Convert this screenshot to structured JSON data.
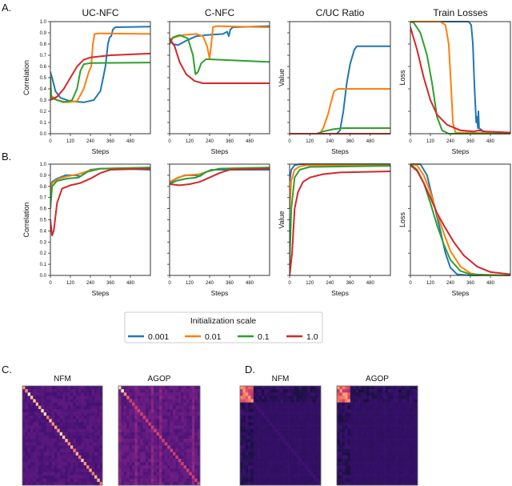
{
  "colors": {
    "0.001": "#1f77b4",
    "0.01": "#ff7f0e",
    "0.1": "#2ca02c",
    "1.0": "#d62728"
  },
  "panel_labels": {
    "A": "A.",
    "B": "B.",
    "C": "C.",
    "D": "D."
  },
  "legend": {
    "title": "Initialization scale",
    "placement": "bottom-center",
    "entries": [
      "0.001",
      "0.01",
      "0.1",
      "1.0"
    ]
  },
  "x_ticks": [
    "0",
    "120",
    "240",
    "360",
    "480"
  ],
  "y_ticks_corr": [
    "0.0",
    "0.1",
    "0.2",
    "0.3",
    "0.4",
    "0.5",
    "0.6",
    "0.7",
    "0.8",
    "0.9",
    "1.0"
  ],
  "chart_data": [
    {
      "id": "A1",
      "type": "line",
      "title": "UC-NFC",
      "xlabel": "Steps",
      "ylabel": "Correlation",
      "xlim": [
        0,
        600
      ],
      "ylim": [
        0,
        1
      ],
      "yticklabels": true,
      "series": [
        {
          "name": "0.001",
          "x": [
            0,
            10,
            30,
            60,
            120,
            200,
            260,
            300,
            330,
            345,
            355,
            365,
            375,
            390,
            600
          ],
          "y": [
            0.55,
            0.5,
            0.38,
            0.32,
            0.29,
            0.28,
            0.3,
            0.38,
            0.6,
            0.8,
            0.86,
            0.87,
            0.93,
            0.95,
            0.955
          ]
        },
        {
          "name": "0.01",
          "x": [
            0,
            5,
            40,
            100,
            160,
            200,
            230,
            245,
            255,
            265,
            290,
            600
          ],
          "y": [
            0.53,
            0.34,
            0.3,
            0.28,
            0.29,
            0.4,
            0.55,
            0.6,
            0.8,
            0.89,
            0.895,
            0.89
          ]
        },
        {
          "name": "0.1",
          "x": [
            0,
            5,
            40,
            80,
            130,
            160,
            180,
            200,
            240,
            600
          ],
          "y": [
            0.5,
            0.32,
            0.3,
            0.28,
            0.3,
            0.4,
            0.56,
            0.62,
            0.63,
            0.635
          ]
        },
        {
          "name": "1.0",
          "x": [
            0,
            40,
            80,
            120,
            160,
            200,
            240,
            360,
            600
          ],
          "y": [
            0.3,
            0.33,
            0.4,
            0.5,
            0.6,
            0.66,
            0.68,
            0.7,
            0.715
          ]
        }
      ]
    },
    {
      "id": "A2",
      "type": "line",
      "title": "C-NFC",
      "xlabel": "Steps",
      "ylabel": "",
      "xlim": [
        0,
        600
      ],
      "ylim": [
        0,
        1
      ],
      "yticklabels": false,
      "series": [
        {
          "name": "0.001",
          "x": [
            0,
            20,
            50,
            100,
            160,
            220,
            320,
            345,
            355,
            365,
            380,
            600
          ],
          "y": [
            0.83,
            0.8,
            0.79,
            0.83,
            0.87,
            0.88,
            0.89,
            0.91,
            0.87,
            0.93,
            0.95,
            0.96
          ]
        },
        {
          "name": "0.01",
          "x": [
            0,
            30,
            80,
            160,
            200,
            225,
            240,
            250,
            260,
            280,
            600
          ],
          "y": [
            0.84,
            0.86,
            0.88,
            0.89,
            0.87,
            0.78,
            0.67,
            0.8,
            0.95,
            0.96,
            0.95
          ]
        },
        {
          "name": "0.1",
          "x": [
            0,
            20,
            60,
            110,
            140,
            155,
            170,
            190,
            220,
            300,
            600
          ],
          "y": [
            0.8,
            0.86,
            0.88,
            0.85,
            0.7,
            0.53,
            0.55,
            0.63,
            0.665,
            0.66,
            0.64
          ]
        },
        {
          "name": "1.0",
          "x": [
            0,
            30,
            60,
            100,
            150,
            200,
            600
          ],
          "y": [
            0.85,
            0.78,
            0.64,
            0.53,
            0.47,
            0.45,
            0.45
          ]
        }
      ]
    },
    {
      "id": "A3",
      "type": "line",
      "title": "C/UC Ratio",
      "xlabel": "Steps",
      "ylabel": "Value",
      "xlim": [
        0,
        600
      ],
      "ylim": [
        0,
        1
      ],
      "yticklabels": false,
      "series": [
        {
          "name": "0.001",
          "x": [
            0,
            280,
            300,
            320,
            340,
            360,
            385,
            400,
            600
          ],
          "y": [
            0,
            0,
            0.03,
            0.2,
            0.45,
            0.62,
            0.75,
            0.78,
            0.78
          ]
        },
        {
          "name": "0.01",
          "x": [
            0,
            180,
            200,
            230,
            250,
            265,
            290,
            600
          ],
          "y": [
            0,
            0,
            0.05,
            0.18,
            0.3,
            0.38,
            0.4,
            0.4
          ]
        },
        {
          "name": "0.1",
          "x": [
            0,
            160,
            200,
            260,
            320,
            600
          ],
          "y": [
            0,
            0,
            0.02,
            0.04,
            0.05,
            0.05
          ]
        },
        {
          "name": "1.0",
          "x": [
            0,
            600
          ],
          "y": [
            0,
            0
          ]
        }
      ]
    },
    {
      "id": "A4",
      "type": "line",
      "title": "Train Losses",
      "xlabel": "Steps",
      "ylabel": "Loss",
      "xlim": [
        0,
        600
      ],
      "ylim": [
        0,
        1
      ],
      "yticklabels": false,
      "series": [
        {
          "name": "0.001",
          "x": [
            0,
            350,
            365,
            375,
            385,
            395,
            400,
            405,
            408,
            412,
            430,
            440,
            600
          ],
          "y": [
            1,
            1,
            0.97,
            0.8,
            0.4,
            0.1,
            0.15,
            0.05,
            0.2,
            0.05,
            0.03,
            0.01,
            0.01
          ]
        },
        {
          "name": "0.01",
          "x": [
            0,
            180,
            210,
            230,
            245,
            255,
            270,
            600
          ],
          "y": [
            1,
            1,
            0.97,
            0.8,
            0.4,
            0.1,
            0.01,
            0.005
          ]
        },
        {
          "name": "0.1",
          "x": [
            0,
            20,
            60,
            100,
            130,
            160,
            190,
            230,
            600
          ],
          "y": [
            1,
            0.99,
            0.9,
            0.7,
            0.45,
            0.15,
            0.03,
            0,
            0
          ]
        },
        {
          "name": "1.0",
          "x": [
            0,
            40,
            80,
            120,
            160,
            220,
            300,
            380,
            410,
            450,
            600
          ],
          "y": [
            0.95,
            0.75,
            0.5,
            0.3,
            0.17,
            0.08,
            0.03,
            0.02,
            0.03,
            0.02,
            0.01
          ]
        }
      ]
    },
    {
      "id": "B1",
      "type": "line",
      "title": "",
      "xlabel": "Steps",
      "ylabel": "Correlation",
      "xlim": [
        0,
        600
      ],
      "ylim": [
        0,
        1
      ],
      "yticklabels": true,
      "series": [
        {
          "name": "0.001",
          "x": [
            0,
            10,
            40,
            90,
            150,
            180,
            200,
            240,
            300,
            400,
            600
          ],
          "y": [
            0.8,
            0.84,
            0.87,
            0.9,
            0.9,
            0.89,
            0.91,
            0.95,
            0.96,
            0.96,
            0.95
          ]
        },
        {
          "name": "0.01",
          "x": [
            0,
            10,
            50,
            100,
            170,
            230,
            300,
            600
          ],
          "y": [
            0.7,
            0.83,
            0.87,
            0.89,
            0.91,
            0.94,
            0.96,
            0.97
          ]
        },
        {
          "name": "0.1",
          "x": [
            0,
            10,
            40,
            100,
            170,
            220,
            300,
            600
          ],
          "y": [
            0.6,
            0.8,
            0.85,
            0.87,
            0.88,
            0.93,
            0.96,
            0.97
          ]
        },
        {
          "name": "1.0",
          "x": [
            0,
            10,
            20,
            40,
            70,
            120,
            180,
            240,
            300,
            360,
            600
          ],
          "y": [
            0.5,
            0.36,
            0.4,
            0.65,
            0.78,
            0.81,
            0.83,
            0.87,
            0.92,
            0.95,
            0.96
          ]
        }
      ]
    },
    {
      "id": "B2",
      "type": "line",
      "title": "",
      "xlabel": "Steps",
      "ylabel": "",
      "xlim": [
        0,
        600
      ],
      "ylim": [
        0,
        1
      ],
      "yticklabels": false,
      "series": [
        {
          "name": "0.001",
          "x": [
            0,
            40,
            90,
            150,
            180,
            220,
            250,
            600
          ],
          "y": [
            0.83,
            0.87,
            0.9,
            0.9,
            0.89,
            0.93,
            0.95,
            0.95
          ]
        },
        {
          "name": "0.01",
          "x": [
            0,
            50,
            100,
            180,
            240,
            300,
            600
          ],
          "y": [
            0.84,
            0.88,
            0.9,
            0.91,
            0.94,
            0.96,
            0.97
          ]
        },
        {
          "name": "0.1",
          "x": [
            0,
            40,
            100,
            160,
            220,
            300,
            600
          ],
          "y": [
            0.82,
            0.85,
            0.87,
            0.88,
            0.93,
            0.96,
            0.97
          ]
        },
        {
          "name": "1.0",
          "x": [
            0,
            60,
            120,
            180,
            240,
            300,
            360,
            600
          ],
          "y": [
            0.82,
            0.81,
            0.82,
            0.84,
            0.88,
            0.92,
            0.95,
            0.96
          ]
        }
      ]
    },
    {
      "id": "B3",
      "type": "line",
      "title": "",
      "xlabel": "Steps",
      "ylabel": "Value",
      "xlim": [
        0,
        600
      ],
      "ylim": [
        0,
        1
      ],
      "yticklabels": false,
      "series": [
        {
          "name": "0.001",
          "x": [
            0,
            10,
            30,
            60,
            600
          ],
          "y": [
            0.85,
            0.95,
            0.99,
            1,
            1
          ]
        },
        {
          "name": "0.01",
          "x": [
            0,
            10,
            30,
            60,
            100,
            600
          ],
          "y": [
            0.6,
            0.85,
            0.95,
            0.98,
            0.99,
            0.99
          ]
        },
        {
          "name": "0.1",
          "x": [
            0,
            10,
            30,
            60,
            120,
            600
          ],
          "y": [
            0.1,
            0.6,
            0.88,
            0.95,
            0.975,
            0.985
          ]
        },
        {
          "name": "1.0",
          "x": [
            0,
            15,
            30,
            50,
            80,
            120,
            200,
            300,
            600
          ],
          "y": [
            0,
            0.2,
            0.6,
            0.75,
            0.84,
            0.88,
            0.91,
            0.925,
            0.935
          ]
        }
      ]
    },
    {
      "id": "B4",
      "type": "line",
      "title": "",
      "xlabel": "Steps",
      "ylabel": "Loss",
      "xlim": [
        0,
        600
      ],
      "ylim": [
        0,
        1
      ],
      "yticklabels": false,
      "series": [
        {
          "name": "0.001",
          "x": [
            0,
            60,
            100,
            140,
            180,
            210,
            240,
            280,
            360,
            600
          ],
          "y": [
            1,
            1,
            0.9,
            0.65,
            0.4,
            0.2,
            0.07,
            0.01,
            0,
            0
          ]
        },
        {
          "name": "0.01",
          "x": [
            0,
            40,
            80,
            120,
            160,
            200,
            240,
            300,
            360,
            420,
            600
          ],
          "y": [
            1,
            0.99,
            0.9,
            0.75,
            0.55,
            0.38,
            0.22,
            0.08,
            0.02,
            0,
            0
          ]
        },
        {
          "name": "0.1",
          "x": [
            0,
            40,
            80,
            120,
            160,
            200,
            240,
            300,
            360,
            600
          ],
          "y": [
            1,
            0.95,
            0.83,
            0.65,
            0.45,
            0.28,
            0.14,
            0.04,
            0.01,
            0
          ]
        },
        {
          "name": "1.0",
          "x": [
            0,
            40,
            80,
            120,
            160,
            200,
            260,
            320,
            400,
            480,
            600
          ],
          "y": [
            0.99,
            0.94,
            0.83,
            0.7,
            0.56,
            0.45,
            0.3,
            0.18,
            0.08,
            0.03,
            0.01
          ]
        }
      ]
    },
    {
      "id": "C1",
      "type": "heatmap",
      "title": "NFM",
      "colormap": "magma",
      "grid": 30,
      "pattern": "strong bright diagonal"
    },
    {
      "id": "C2",
      "type": "heatmap",
      "title": "AGOP",
      "colormap": "magma",
      "grid": 30,
      "pattern": "red diagonal"
    },
    {
      "id": "D1",
      "type": "heatmap",
      "title": "NFM",
      "colormap": "magma",
      "grid": 30,
      "pattern": "bright top-left block, faint diagonal"
    },
    {
      "id": "D2",
      "type": "heatmap",
      "title": "AGOP",
      "colormap": "magma",
      "grid": 30,
      "pattern": "bright top-left block"
    }
  ]
}
